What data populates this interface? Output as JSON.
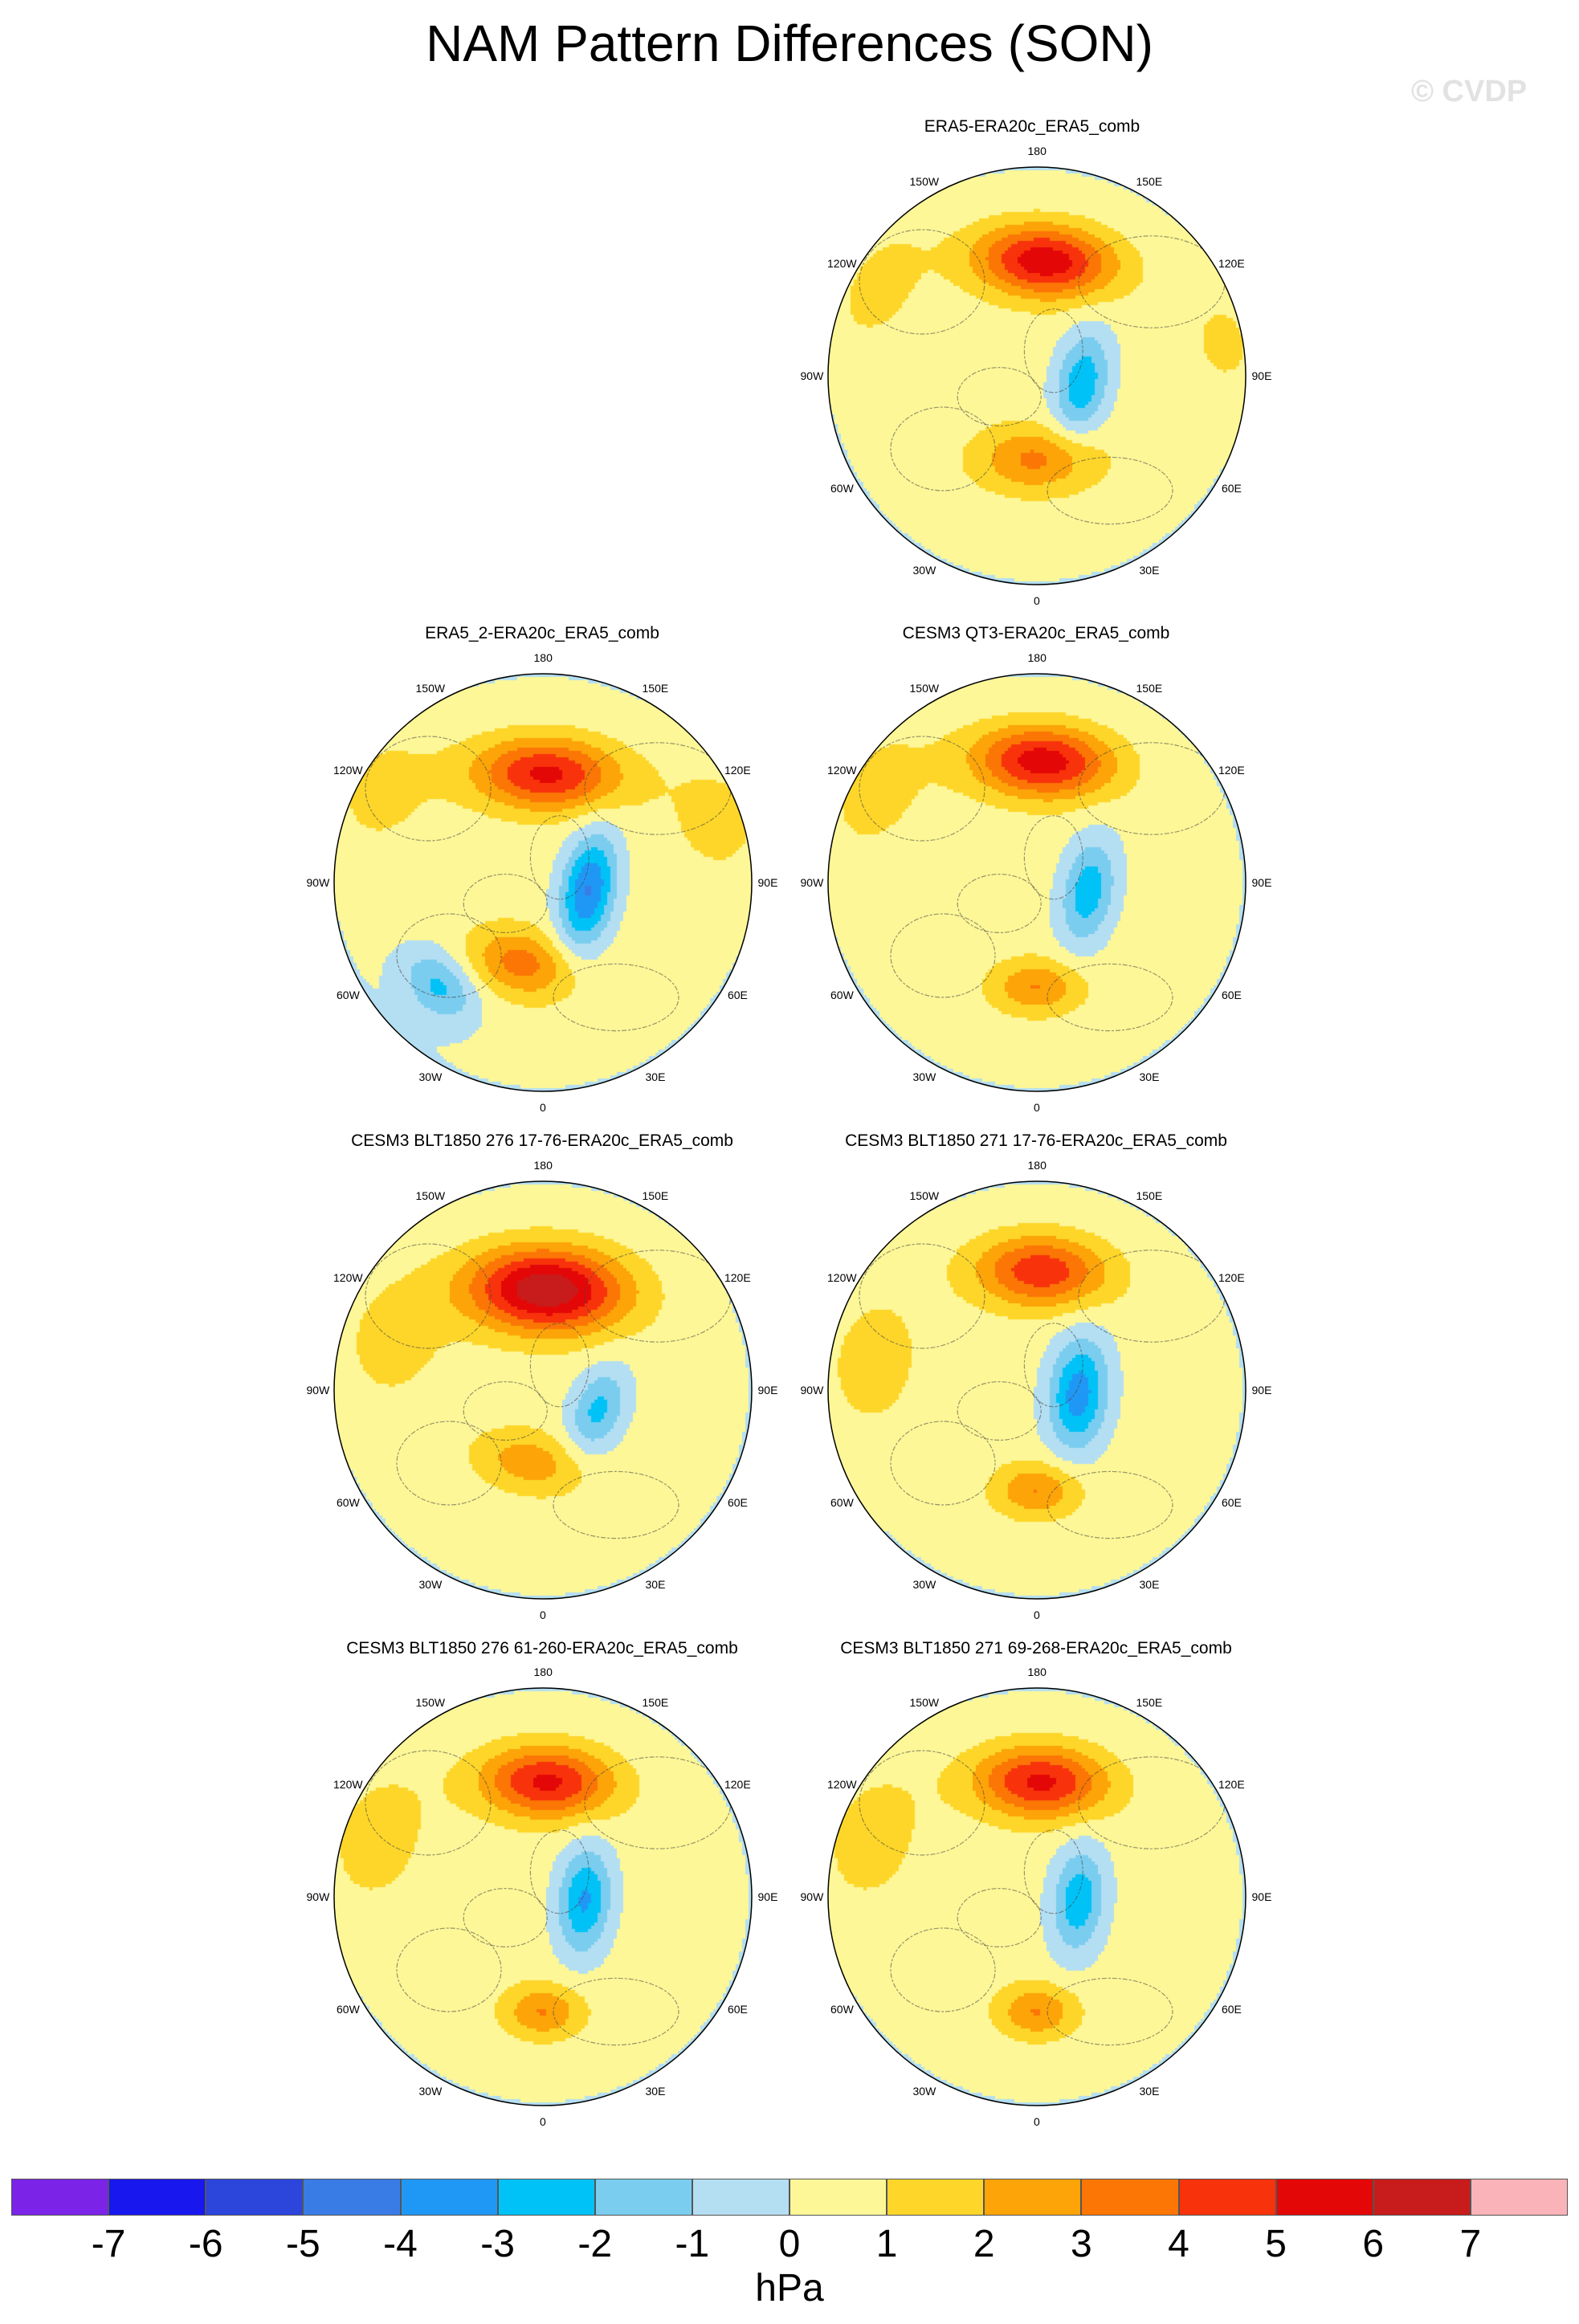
{
  "title": "NAM Pattern Differences (SON)",
  "watermark": "© CVDP",
  "units": "hPa",
  "lon_labels": [
    "180",
    "150E",
    "120E",
    "90E",
    "60E",
    "30E",
    "0",
    "30W",
    "60W",
    "90W",
    "120W",
    "150W"
  ],
  "panels": [
    {
      "title": "ERA5-ERA20c_ERA5_comb",
      "features": [
        {
          "lon": 176,
          "r": 0.55,
          "a": 0.23,
          "b": 0.12,
          "amp": 5.3
        },
        {
          "lon": 80,
          "r": 0.22,
          "a": 0.18,
          "b": 0.09,
          "amp": -3.2
        },
        {
          "lon": 0,
          "r": 0.4,
          "a": 0.2,
          "b": 0.11,
          "amp": 2.8
        },
        {
          "lon": -120,
          "r": 0.9,
          "a": 0.25,
          "b": 0.15,
          "amp": 1.2
        },
        {
          "lon": 100,
          "r": 0.95,
          "a": 0.22,
          "b": 0.15,
          "amp": 1.1
        }
      ]
    },
    {
      "title": "ERA5_2-ERA20c_ERA5_comb",
      "features": [
        {
          "lon": 178,
          "r": 0.52,
          "a": 0.24,
          "b": 0.12,
          "amp": 4.8
        },
        {
          "lon": 80,
          "r": 0.22,
          "a": 0.19,
          "b": 0.09,
          "amp": -4.5
        },
        {
          "lon": -15,
          "r": 0.4,
          "a": 0.17,
          "b": 0.11,
          "amp": 3.0
        },
        {
          "lon": -45,
          "r": 0.7,
          "a": 0.14,
          "b": 0.1,
          "amp": -2.6
        },
        {
          "lon": -120,
          "r": 0.95,
          "a": 0.25,
          "b": 0.2,
          "amp": 1.2
        },
        {
          "lon": 110,
          "r": 0.95,
          "a": 0.25,
          "b": 0.2,
          "amp": 1.2
        }
      ]
    },
    {
      "title": "CESM3 QT3-ERA20c_ERA5_comb",
      "features": [
        {
          "lon": 177,
          "r": 0.58,
          "a": 0.23,
          "b": 0.12,
          "amp": 5.2
        },
        {
          "lon": 80,
          "r": 0.25,
          "a": 0.18,
          "b": 0.09,
          "amp": -3.1
        },
        {
          "lon": 0,
          "r": 0.5,
          "a": 0.15,
          "b": 0.09,
          "amp": 2.6
        },
        {
          "lon": -120,
          "r": 0.95,
          "a": 0.3,
          "b": 0.2,
          "amp": 1.2
        }
      ]
    },
    {
      "title": "CESM3 BLT1850 276 17-76-ERA20c_ERA5_comb",
      "features": [
        {
          "lon": 178,
          "r": 0.48,
          "a": 0.26,
          "b": 0.14,
          "amp": 6.5
        },
        {
          "lon": 70,
          "r": 0.28,
          "a": 0.15,
          "b": 0.09,
          "amp": -2.7
        },
        {
          "lon": -10,
          "r": 0.35,
          "a": 0.18,
          "b": 0.1,
          "amp": 2.2
        },
        {
          "lon": -110,
          "r": 0.8,
          "a": 0.25,
          "b": 0.2,
          "amp": 1.1
        }
      ]
    },
    {
      "title": "CESM3 BLT1850 271 17-76-ERA20c_ERA5_comb",
      "features": [
        {
          "lon": 178,
          "r": 0.57,
          "a": 0.22,
          "b": 0.12,
          "amp": 4.3
        },
        {
          "lon": 85,
          "r": 0.2,
          "a": 0.19,
          "b": 0.1,
          "amp": -4.0
        },
        {
          "lon": 0,
          "r": 0.48,
          "a": 0.14,
          "b": 0.09,
          "amp": 2.6
        },
        {
          "lon": -100,
          "r": 0.85,
          "a": 0.3,
          "b": 0.2,
          "amp": 1.1
        }
      ]
    },
    {
      "title": "CESM3 BLT1850 276 61-260-ERA20c_ERA5_comb",
      "features": [
        {
          "lon": 178,
          "r": 0.55,
          "a": 0.22,
          "b": 0.12,
          "amp": 4.8
        },
        {
          "lon": 85,
          "r": 0.2,
          "a": 0.18,
          "b": 0.09,
          "amp": -3.6
        },
        {
          "lon": 0,
          "r": 0.55,
          "a": 0.13,
          "b": 0.09,
          "amp": 2.6
        },
        {
          "lon": -110,
          "r": 0.9,
          "a": 0.3,
          "b": 0.2,
          "amp": 1.2
        }
      ]
    },
    {
      "title": "CESM3 BLT1850 271 69-268-ERA20c_ERA5_comb",
      "features": [
        {
          "lon": 178,
          "r": 0.55,
          "a": 0.22,
          "b": 0.12,
          "amp": 4.8
        },
        {
          "lon": 85,
          "r": 0.2,
          "a": 0.18,
          "b": 0.09,
          "amp": -3.2
        },
        {
          "lon": 0,
          "r": 0.55,
          "a": 0.13,
          "b": 0.09,
          "amp": 2.6
        },
        {
          "lon": -110,
          "r": 0.9,
          "a": 0.3,
          "b": 0.2,
          "amp": 1.2
        }
      ]
    }
  ],
  "colorbar": {
    "levels": [
      -7,
      -6,
      -5,
      -4,
      -3,
      -2,
      -1,
      0,
      1,
      2,
      3,
      4,
      5,
      6,
      7
    ],
    "colors": [
      "#7b24e8",
      "#1818ee",
      "#2c46dc",
      "#3a7ce6",
      "#1f98f5",
      "#00c2f6",
      "#7acdef",
      "#b4def2",
      "#fdf797",
      "#fdd629",
      "#fca408",
      "#fb7605",
      "#f8330b",
      "#e40707",
      "#c81c1c",
      "#fab3b8"
    ]
  }
}
